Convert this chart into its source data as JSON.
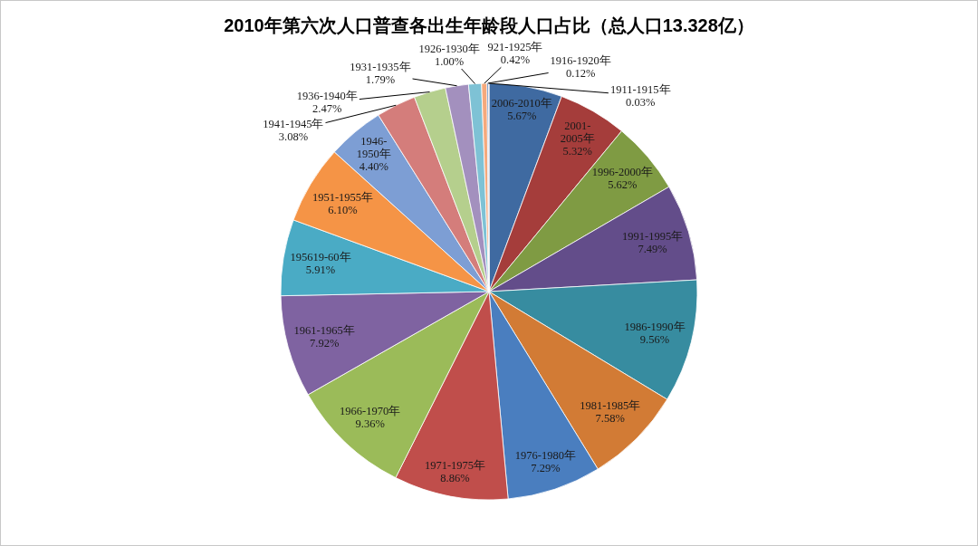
{
  "chart_data": {
    "type": "pie",
    "title": "2010年第六次人口普查各出生年龄段人口占比（总人口13.328亿）",
    "categories": [
      "2006-2010年",
      "2001-2005年",
      "1996-2000年",
      "1991-1995年",
      "1986-1990年",
      "1981-1985年",
      "1976-1980年",
      "1971-1975年",
      "1966-1970年",
      "1961-1965年",
      "195619-60年",
      "1951-1955年",
      "1946-1950年",
      "1941-1945年",
      "1936-1940年",
      "1931-1935年",
      "1926-1930年",
      "921-1925年",
      "1916-1920年",
      "1911-1915年"
    ],
    "values": [
      5.67,
      5.32,
      5.62,
      7.49,
      9.56,
      7.58,
      7.29,
      8.86,
      9.36,
      7.92,
      5.91,
      6.1,
      4.4,
      3.08,
      2.47,
      1.79,
      1.0,
      0.42,
      0.12,
      0.03
    ],
    "value_labels": [
      "5.67%",
      "5.32%",
      "5.62%",
      "7.49%",
      "9.56%",
      "7.58%",
      "7.29%",
      "8.86%",
      "9.36%",
      "7.92%",
      "5.91%",
      "6.10%",
      "4.40%",
      "3.08%",
      "2.47%",
      "1.79%",
      "1.00%",
      "0.42%",
      "0.12%",
      "0.03%"
    ],
    "colors": [
      "#3f6aa1",
      "#a53d3b",
      "#7f9b43",
      "#634d8a",
      "#378ca0",
      "#d27b35",
      "#4a7ebf",
      "#c04e4b",
      "#9bbb59",
      "#7f63a1",
      "#4aabc5",
      "#f59446",
      "#7d9ed4",
      "#d47d7b",
      "#b5cf8d",
      "#a390be",
      "#7ec2d5",
      "#f5a97c",
      "#4f81bd",
      "#c0504d"
    ]
  }
}
